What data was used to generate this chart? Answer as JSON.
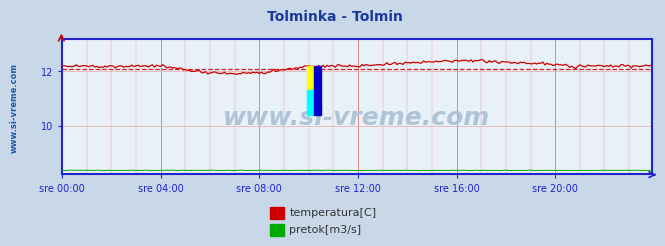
{
  "title": "Tolminka - Tolmin",
  "title_color": "#1a3a9a",
  "title_fontsize": 10,
  "plot_bg_color": "#e8f0f8",
  "outer_bg_color": "#c8d8e8",
  "xlabel_ticks": [
    "sre 00:00",
    "sre 04:00",
    "sre 08:00",
    "sre 12:00",
    "sre 16:00",
    "sre 20:00"
  ],
  "ylabel_values": [
    10,
    12
  ],
  "ylim": [
    8.2,
    13.2
  ],
  "xlim": [
    0,
    287
  ],
  "tick_positions": [
    0,
    48,
    96,
    144,
    192,
    240
  ],
  "watermark": "www.si-vreme.com",
  "watermark_color": "#b0c4d8",
  "watermark_fontsize": 18,
  "sidebar_text": "www.si-vreme.com",
  "sidebar_color": "#1a5aaa",
  "sidebar_fontsize": 6,
  "temp_color": "#cc0000",
  "flow_color": "#00aa00",
  "avg_value": 12.1,
  "avg_color": "#cc0000",
  "grid_color_minor": "#e8aaaa",
  "grid_color_major": "#dd7777",
  "axis_color": "#2222cc",
  "legend_items": [
    "temperatura[C]",
    "pretok[m3/s]"
  ],
  "legend_colors": [
    "#cc0000",
    "#00aa00"
  ],
  "legend_text_color": "#333333",
  "legend_fontsize": 8
}
